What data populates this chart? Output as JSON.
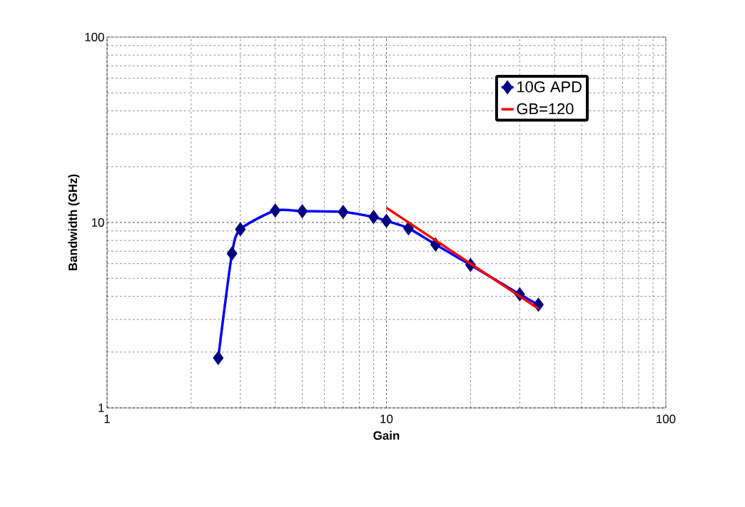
{
  "chart_data": {
    "type": "line",
    "xlabel": "Gain",
    "ylabel": "Bandwidth (GHz)",
    "log": "xy",
    "grid": true,
    "legend": "top right",
    "xlim": [
      1,
      100
    ],
    "ylim": [
      1,
      100
    ],
    "xticks": [
      1,
      10,
      100
    ],
    "yticks": [
      1,
      10,
      100
    ],
    "series": [
      {
        "name": "10G APD",
        "color": "#0000ff",
        "marker": "diamond",
        "x": [
          2.5,
          2.8,
          3,
          4,
          5,
          7,
          9,
          10,
          12,
          15,
          20,
          30,
          35
        ],
        "values": [
          1.86,
          6.8,
          9.2,
          11.6,
          11.5,
          11.4,
          10.7,
          10.2,
          9.3,
          7.6,
          5.9,
          4.1,
          3.6
        ]
      },
      {
        "name": "GB=120",
        "color": "#ff0000",
        "marker": "none",
        "x": [
          10,
          35
        ],
        "values": [
          12,
          3.43
        ]
      }
    ]
  }
}
